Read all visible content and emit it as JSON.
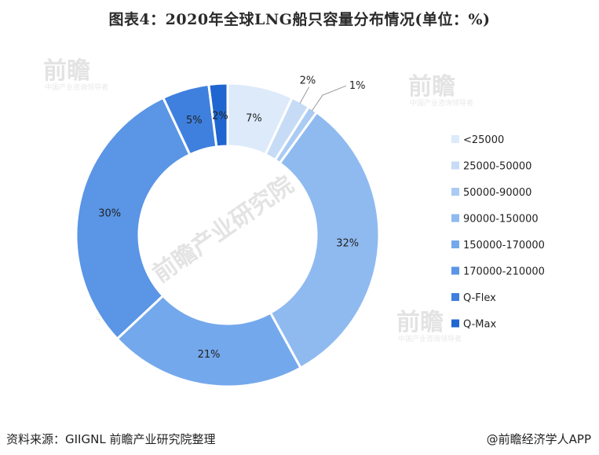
{
  "title": "图表4：2020年全球LNG船只容量分布情况(单位：%)",
  "source": "资料来源：GIIGNL 前瞻产业研究院整理",
  "credit": "@前瞻经济学人APP",
  "watermark": {
    "brand": "前瞻",
    "center_text": "前瞻产业研究院",
    "sub_text": "中国产业咨询领导者"
  },
  "chart_data": {
    "type": "pie",
    "variant": "donut",
    "title": "图表4：2020年全球LNG船只容量分布情况(单位：%)",
    "categories": [
      "<25000",
      "25000-50000",
      "50000-90000",
      "90000-150000",
      "150000-170000",
      "170000-210000",
      "Q-Flex",
      "Q-Max"
    ],
    "values": [
      7,
      2,
      1,
      32,
      21,
      30,
      5,
      2
    ],
    "labels": [
      "7%",
      "2%",
      "1%",
      "32%",
      "21%",
      "30%",
      "5%",
      "2%"
    ],
    "colors": [
      "#ddeafa",
      "#c6dcf6",
      "#aacbf3",
      "#8fbaf0",
      "#74a8ec",
      "#5a95e6",
      "#3f80de",
      "#1f66d1"
    ],
    "legend_position": "right"
  }
}
